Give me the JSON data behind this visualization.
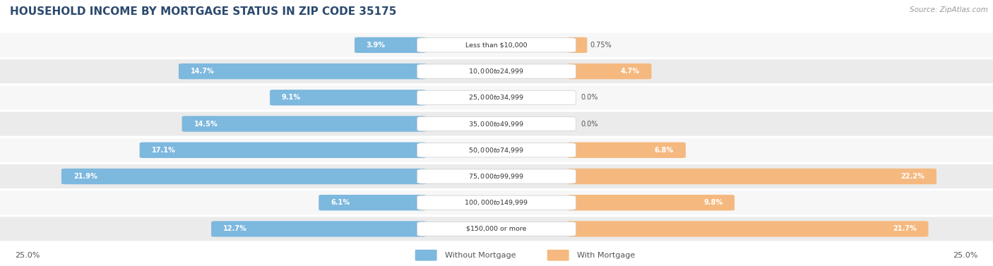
{
  "title": "HOUSEHOLD INCOME BY MORTGAGE STATUS IN ZIP CODE 35175",
  "source": "Source: ZipAtlas.com",
  "categories": [
    "Less than $10,000",
    "$10,000 to $24,999",
    "$25,000 to $34,999",
    "$35,000 to $49,999",
    "$50,000 to $74,999",
    "$75,000 to $99,999",
    "$100,000 to $149,999",
    "$150,000 or more"
  ],
  "without_mortgage": [
    3.9,
    14.7,
    9.1,
    14.5,
    17.1,
    21.9,
    6.1,
    12.7
  ],
  "with_mortgage": [
    0.75,
    4.7,
    0.0,
    0.0,
    6.8,
    22.2,
    9.8,
    21.7
  ],
  "without_mortgage_label": [
    "3.9%",
    "14.7%",
    "9.1%",
    "14.5%",
    "17.1%",
    "21.9%",
    "6.1%",
    "12.7%"
  ],
  "with_mortgage_label": [
    "0.75%",
    "4.7%",
    "0.0%",
    "0.0%",
    "6.8%",
    "22.2%",
    "9.8%",
    "21.7%"
  ],
  "color_without": "#7db8de",
  "color_with": "#f5b97f",
  "color_with_dark": "#e8953a",
  "max_val": 25.0,
  "bg_color": "#ffffff",
  "row_bg_light": "#f7f7f7",
  "row_bg_dark": "#ebebeb",
  "title_color": "#2c4a6e",
  "label_color": "#555555",
  "legend_label_color": "#555555"
}
